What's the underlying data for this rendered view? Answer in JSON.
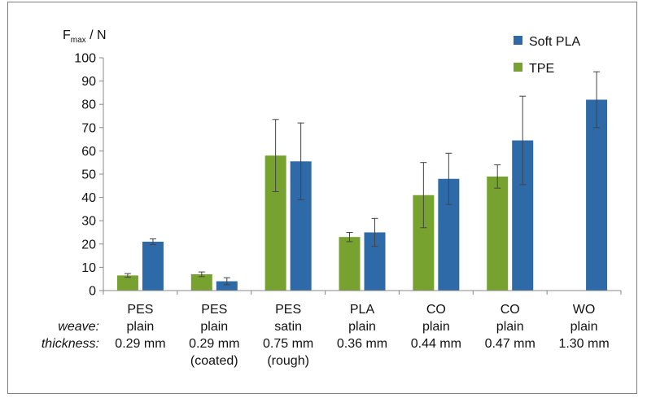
{
  "chart_data": {
    "type": "bar",
    "ylabel_main": "F",
    "ylabel_sub": "max",
    "ylabel_unit": " / N",
    "ylim": [
      0,
      100
    ],
    "yticks": [
      0,
      10,
      20,
      30,
      40,
      50,
      60,
      70,
      80,
      90,
      100
    ],
    "legend_position": "top-right",
    "row_labels": {
      "weave": "weave:",
      "thickness": "thickness:"
    },
    "categories": [
      {
        "material": "PES",
        "weave": "plain",
        "thickness": "0.29 mm",
        "note": ""
      },
      {
        "material": "PES",
        "weave": "plain",
        "thickness": "0.29 mm",
        "note": "(coated)"
      },
      {
        "material": "PES",
        "weave": "satin",
        "thickness": "0.75 mm",
        "note": "(rough)"
      },
      {
        "material": "PLA",
        "weave": "plain",
        "thickness": "0.36 mm",
        "note": ""
      },
      {
        "material": "CO",
        "weave": "plain",
        "thickness": "0.44 mm",
        "note": ""
      },
      {
        "material": "CO",
        "weave": "plain",
        "thickness": "0.47 mm",
        "note": ""
      },
      {
        "material": "WO",
        "weave": "plain",
        "thickness": "1.30 mm",
        "note": ""
      }
    ],
    "series": [
      {
        "name": "TPE",
        "color": "#77a22f",
        "values": [
          6.5,
          7,
          58,
          23,
          41,
          49,
          null
        ],
        "errors": [
          0.8,
          1.0,
          15.5,
          2.0,
          14,
          5,
          null
        ]
      },
      {
        "name": "Soft PLA",
        "color": "#2d6aa7",
        "values": [
          21,
          4,
          55.5,
          25,
          48,
          64.5,
          82
        ],
        "errors": [
          1.2,
          1.5,
          16.5,
          6,
          11,
          19,
          12
        ]
      }
    ],
    "legend_order": [
      "Soft PLA",
      "TPE"
    ]
  }
}
